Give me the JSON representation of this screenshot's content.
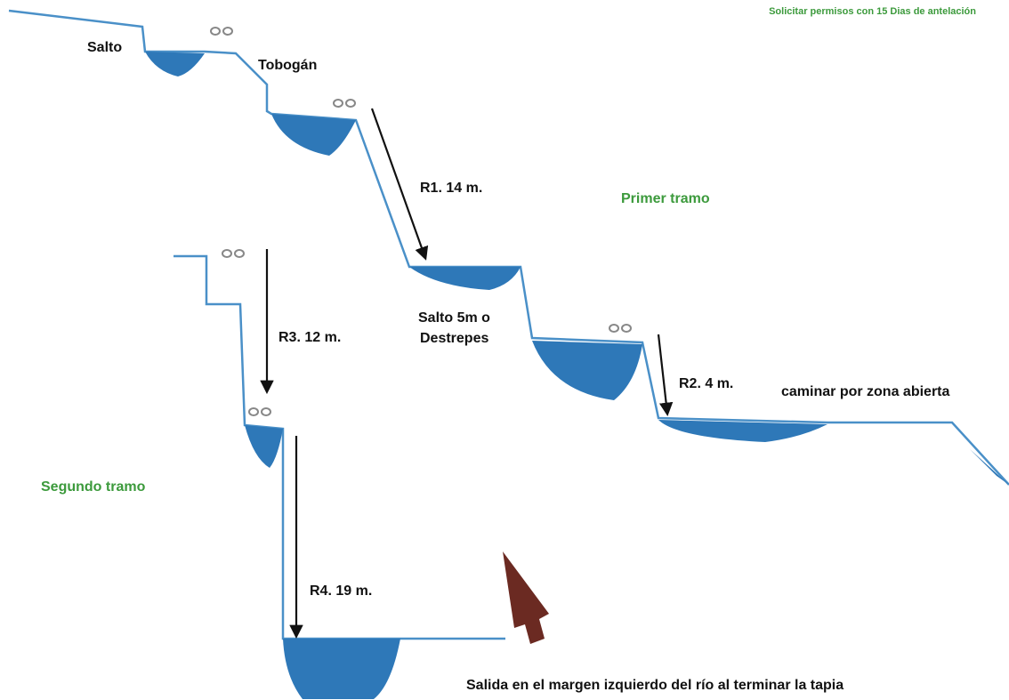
{
  "header": {
    "note": "Solicitar permisos con 15 Dias de antelación"
  },
  "labels": {
    "salto": "Salto",
    "tobogan": "Tobogán",
    "r1": "R1. 14 m.",
    "primer_tramo": "Primer tramo",
    "salto5_line1": "Salto 5m o",
    "salto5_line2": "Destrepes",
    "r2": "R2. 4 m.",
    "caminar": "caminar por zona abierta",
    "r3": "R3. 12 m.",
    "segundo_tramo": "Segundo tramo",
    "r4": "R4. 19 m.",
    "salida": "Salida en el margen izquierdo del río al terminar la tapia"
  }
}
